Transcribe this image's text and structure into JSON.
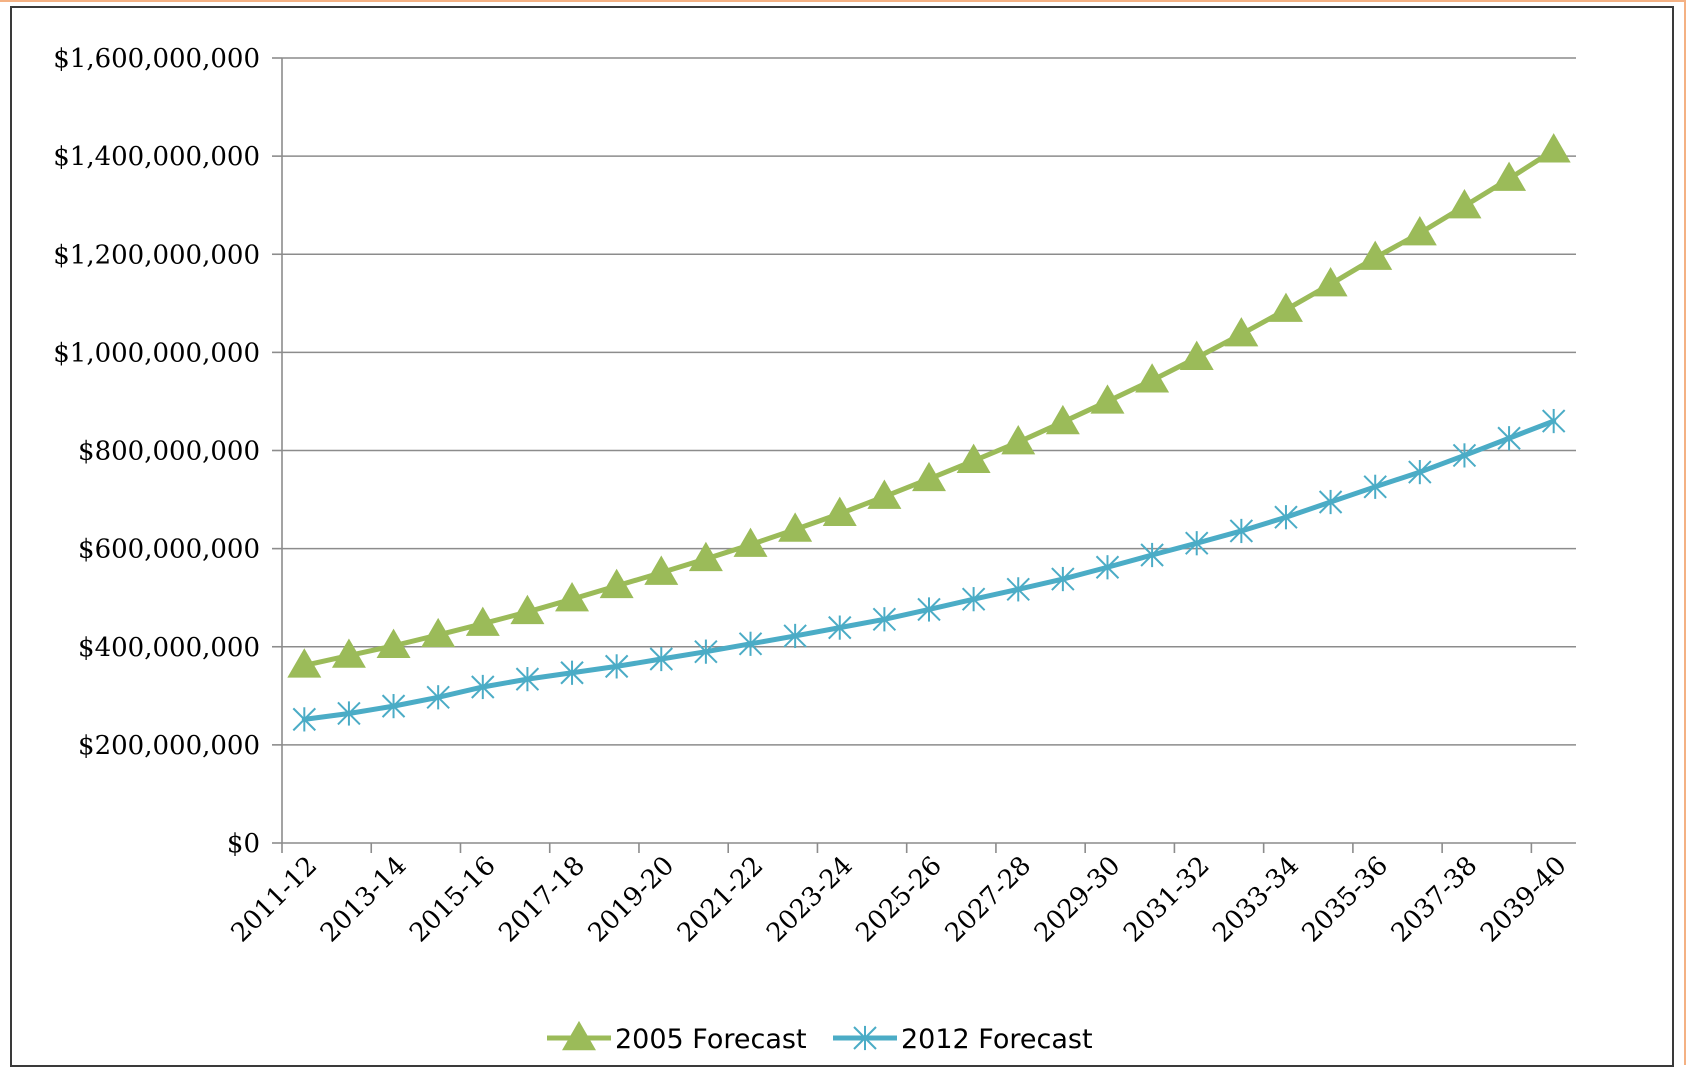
{
  "chart_data": {
    "type": "line",
    "title": "",
    "xlabel": "",
    "ylabel": "",
    "ylim": [
      0,
      1600000000
    ],
    "y_ticks": [
      0,
      200000000,
      400000000,
      600000000,
      800000000,
      1000000000,
      1200000000,
      1400000000,
      1600000000
    ],
    "y_tick_labels": [
      "$0",
      "$200,000,000",
      "$400,000,000",
      "$600,000,000",
      "$800,000,000",
      "$1,000,000,000",
      "$1,200,000,000",
      "$1,400,000,000",
      "$1,600,000,000"
    ],
    "categories": [
      "2011-12",
      "2012-13",
      "2013-14",
      "2014-15",
      "2015-16",
      "2016-17",
      "2017-18",
      "2018-19",
      "2019-20",
      "2020-21",
      "2021-22",
      "2022-23",
      "2023-24",
      "2024-25",
      "2025-26",
      "2026-27",
      "2027-28",
      "2028-29",
      "2029-30",
      "2030-31",
      "2031-32",
      "2032-33",
      "2033-34",
      "2034-35",
      "2035-36",
      "2036-37",
      "2037-38",
      "2038-39",
      "2039-40"
    ],
    "x_tick_labels": [
      "2011-12",
      "2013-14",
      "2015-16",
      "2017-18",
      "2019-20",
      "2021-22",
      "2023-24",
      "2025-26",
      "2027-28",
      "2029-30",
      "2031-32",
      "2033-34",
      "2035-36",
      "2037-38",
      "2039-40"
    ],
    "grid": true,
    "legend_position": "bottom",
    "series": [
      {
        "name": "2005 Forecast",
        "color": "#9bbb59",
        "marker": "triangle",
        "values": [
          362000000,
          382000000,
          402000000,
          424000000,
          447000000,
          471000000,
          497000000,
          524000000,
          551000000,
          579000000,
          608000000,
          639000000,
          671000000,
          706000000,
          742000000,
          779000000,
          817000000,
          858000000,
          900000000,
          943000000,
          989000000,
          1037000000,
          1087000000,
          1139000000,
          1193000000,
          1243000000,
          1298000000,
          1354000000,
          1412000000
        ]
      },
      {
        "name": "2012 Forecast",
        "color": "#4bacc6",
        "marker": "asterisk",
        "values": [
          252000000,
          264000000,
          279000000,
          297000000,
          318000000,
          334000000,
          347000000,
          360000000,
          375000000,
          390000000,
          406000000,
          422000000,
          439000000,
          456000000,
          476000000,
          497000000,
          517000000,
          538000000,
          562000000,
          587000000,
          611000000,
          636000000,
          664000000,
          695000000,
          726000000,
          756000000,
          790000000,
          825000000,
          860000000
        ]
      }
    ]
  }
}
